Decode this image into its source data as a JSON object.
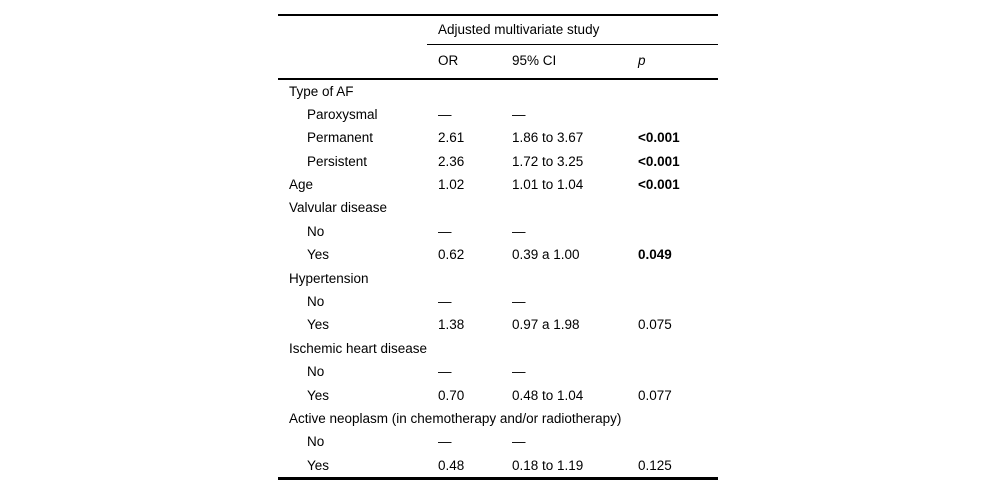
{
  "table": {
    "title_spanner": "Adjusted multivariate study",
    "columns": {
      "or": "OR",
      "ci": "95% CI",
      "p": "p"
    },
    "rows": [
      {
        "label": "Type of AF",
        "indent": 0,
        "or": "",
        "ci": "",
        "p": "",
        "p_bold": false
      },
      {
        "label": "Paroxysmal",
        "indent": 1,
        "or": "—",
        "ci": "—",
        "p": "",
        "p_bold": false
      },
      {
        "label": "Permanent",
        "indent": 1,
        "or": "2.61",
        "ci": "1.86 to 3.67",
        "p": "<0.001",
        "p_bold": true
      },
      {
        "label": "Persistent",
        "indent": 1,
        "or": "2.36",
        "ci": "1.72 to 3.25",
        "p": "<0.001",
        "p_bold": true
      },
      {
        "label": "Age",
        "indent": 0,
        "or": "1.02",
        "ci": "1.01 to 1.04",
        "p": "<0.001",
        "p_bold": true
      },
      {
        "label": "Valvular disease",
        "indent": 0,
        "or": "",
        "ci": "",
        "p": "",
        "p_bold": false
      },
      {
        "label": "No",
        "indent": 1,
        "or": "—",
        "ci": "—",
        "p": "",
        "p_bold": false
      },
      {
        "label": "Yes",
        "indent": 1,
        "or": "0.62",
        "ci": "0.39 a 1.00",
        "p": "0.049",
        "p_bold": true
      },
      {
        "label": "Hypertension",
        "indent": 0,
        "or": "",
        "ci": "",
        "p": "",
        "p_bold": false
      },
      {
        "label": "No",
        "indent": 1,
        "or": "—",
        "ci": "—",
        "p": "",
        "p_bold": false
      },
      {
        "label": "Yes",
        "indent": 1,
        "or": "1.38",
        "ci": "0.97 a 1.98",
        "p": "0.075",
        "p_bold": false
      },
      {
        "label": "Ischemic heart disease",
        "indent": 0,
        "or": "",
        "ci": "",
        "p": "",
        "p_bold": false
      },
      {
        "label": "No",
        "indent": 1,
        "or": "—",
        "ci": "—",
        "p": "",
        "p_bold": false
      },
      {
        "label": "Yes",
        "indent": 1,
        "or": "0.70",
        "ci": "0.48 to 1.04",
        "p": "0.077",
        "p_bold": false
      },
      {
        "label": "Active neoplasm (in chemotherapy and/or radiotherapy)",
        "indent": 0,
        "or": "",
        "ci": "",
        "p": "",
        "p_bold": false
      },
      {
        "label": "No",
        "indent": 1,
        "or": "—",
        "ci": "—",
        "p": "",
        "p_bold": false
      },
      {
        "label": "Yes",
        "indent": 1,
        "or": "0.48",
        "ci": "0.18 to 1.19",
        "p": "0.125",
        "p_bold": false
      }
    ]
  }
}
